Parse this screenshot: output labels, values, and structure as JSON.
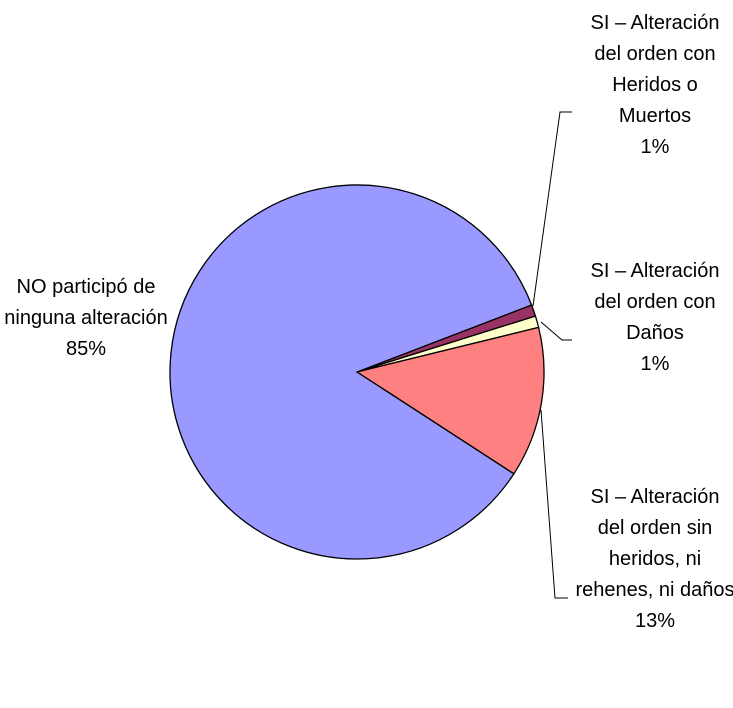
{
  "chart_data": {
    "type": "pie",
    "categories": [
      "SI – Alteración del orden con Heridos o Muertos",
      "SI – Alteración del orden con Daños",
      "SI – Alteración del orden sin heridos, ni rehenes, ni daños",
      "NO participó de ninguna alteración"
    ],
    "values": [
      1,
      1,
      13,
      85
    ],
    "value_labels": [
      "1%",
      "1%",
      "13%",
      "85%"
    ],
    "colors": [
      "#993366",
      "#ffffcc",
      "#ff8080",
      "#9999ff"
    ]
  }
}
